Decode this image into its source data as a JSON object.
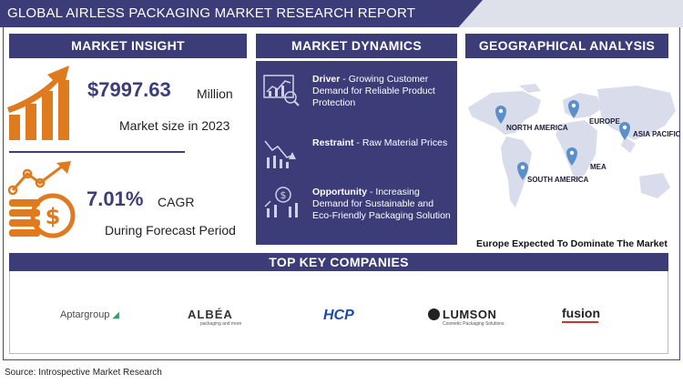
{
  "header": {
    "title": "GLOBAL AIRLESS PACKAGING MARKET RESEARCH REPORT"
  },
  "market_insight": {
    "heading": "MARKET INSIGHT",
    "size_value": "$7997.63",
    "size_unit": "Million",
    "size_label": "Market size in 2023",
    "cagr_value": "7.01%",
    "cagr_unit": "CAGR",
    "cagr_label": "During Forecast Period"
  },
  "market_dynamics": {
    "heading": "MARKET DYNAMICS",
    "items": [
      {
        "title": "Driver",
        "text": " - Growing Customer Demand for Reliable Product Protection"
      },
      {
        "title": "Restraint",
        "text": " - Raw Material Prices"
      },
      {
        "title": "Opportunity",
        "text": " - Increasing Demand for Sustainable and Eco-Friendly Packaging Solution"
      }
    ]
  },
  "geographical_analysis": {
    "heading": "GEOGRAPHICAL ANALYSIS",
    "regions": [
      "NORTH AMERICA",
      "EUROPE",
      "ASIA PACIFIC",
      "MEA",
      "SOUTH AMERICA"
    ],
    "caption": "Europe  Expected To Dominate The Market"
  },
  "top_companies": {
    "heading": "TOP KEY COMPANIES",
    "logos": {
      "aptar": "Aptargroup",
      "albea": "ALBÉA",
      "albea_tag": "packaging and more",
      "hcp": "HCP",
      "lumson": "LUMSON",
      "lumson_tag": "Cosmetic Packaging Solutions",
      "fusion": "fusion"
    }
  },
  "footer": {
    "source": "Source: Introspective Market Research"
  },
  "colors": {
    "navy": "#3c3c78",
    "orange": "#e07a1f",
    "map": "#d9dcea",
    "pin": "#5b8fc9"
  }
}
